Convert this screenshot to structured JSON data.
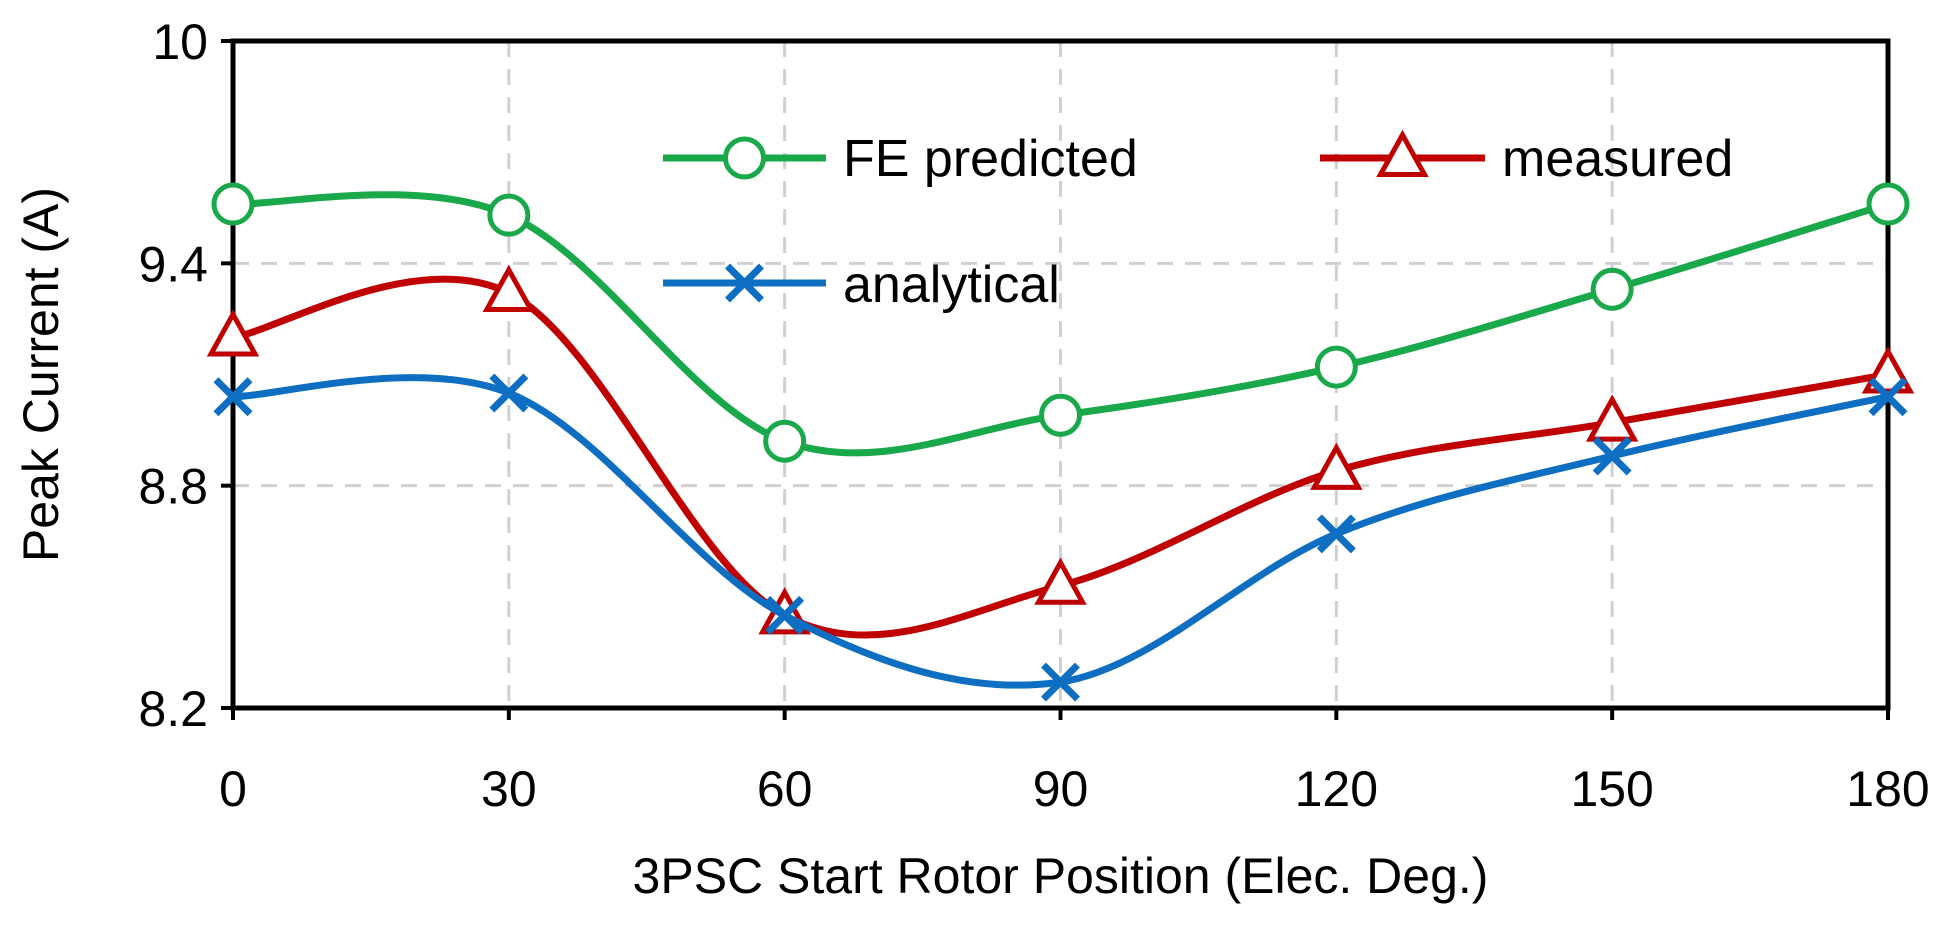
{
  "chart_data": {
    "type": "line",
    "title": "",
    "xlabel": "3PSC Start Rotor Position (Elec. Deg.)",
    "ylabel": "Peak Current (A)",
    "xlim": [
      0,
      180
    ],
    "ylim": [
      8.2,
      10.0
    ],
    "x_ticks": [
      0,
      30,
      60,
      90,
      120,
      150,
      180
    ],
    "y_ticks": [
      8.2,
      8.8,
      9.4,
      10.0
    ],
    "x_tick_labels": [
      "0",
      "30",
      "60",
      "90",
      "120",
      "150",
      "180"
    ],
    "y_tick_labels": [
      "8.2",
      "8.8",
      "9.4",
      "10"
    ],
    "grid": true,
    "smooth": true,
    "x": [
      0,
      30,
      60,
      90,
      120,
      150,
      180
    ],
    "series": [
      {
        "name": "FE predicted",
        "color": "#19A84A",
        "marker": "circle",
        "values": [
          9.56,
          9.53,
          8.92,
          8.99,
          9.12,
          9.33,
          9.56
        ]
      },
      {
        "name": "measured",
        "color": "#C00000",
        "marker": "triangle",
        "values": [
          9.2,
          9.32,
          8.45,
          8.53,
          8.84,
          8.97,
          9.1
        ]
      },
      {
        "name": "analytical",
        "color": "#0E6FC2",
        "marker": "x",
        "values": [
          9.04,
          9.05,
          8.45,
          8.27,
          8.67,
          8.88,
          9.04
        ]
      }
    ]
  }
}
